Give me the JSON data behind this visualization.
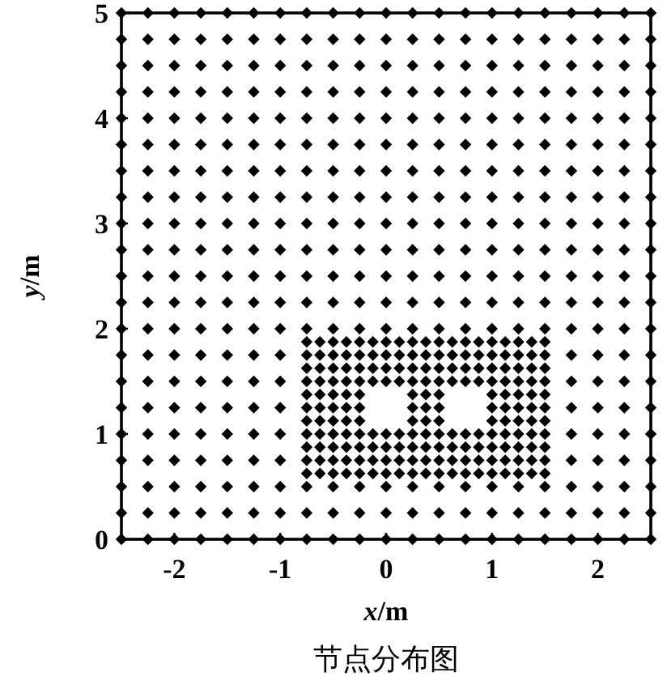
{
  "chart_data": {
    "type": "scatter",
    "title": "节点分布图",
    "xlabel": "*x*/m",
    "ylabel": "*y*/m",
    "xlim": [
      -2.5,
      2.5
    ],
    "ylim": [
      0,
      5
    ],
    "xticks": [
      -2,
      -1,
      0,
      1,
      2
    ],
    "yticks": [
      0,
      1,
      2,
      3,
      4,
      5
    ],
    "grid": false,
    "marker": "diamond",
    "series": [
      {
        "color": "#000000",
        "x": [
          -2.5,
          -2.25,
          -2,
          -1.75,
          -1.5,
          -1.25,
          -1,
          -0.75,
          -0.5,
          -0.25,
          0,
          0.25,
          0.5,
          0.75,
          1,
          1.25,
          1.5,
          1.75,
          2,
          2.25,
          2.5,
          -2.5,
          -2.25,
          -2,
          -1.75,
          -1.5,
          -1.25,
          -1,
          -0.75,
          -0.5,
          -0.25,
          0,
          0.25,
          0.5,
          0.75,
          1,
          1.25,
          1.5,
          1.75,
          2,
          2.25,
          2.5,
          -2.5,
          -2.25,
          -2,
          -1.75,
          -1.5,
          -1.25,
          -1,
          -0.75,
          -0.5,
          -0.25,
          0,
          0.25,
          0.5,
          0.75,
          1,
          1.25,
          1.5,
          1.75,
          2,
          2.25,
          2.5,
          -2.5,
          -2.25,
          -2,
          -1.75,
          -1.5,
          -1.25,
          -1,
          1.75,
          2,
          2.25,
          2.5,
          -2.5,
          -2.25,
          -2,
          -1.75,
          -1.5,
          -1.25,
          -1,
          1.75,
          2,
          2.25,
          2.5,
          -2.5,
          -2.25,
          -2,
          -1.75,
          -1.5,
          -1.25,
          -1,
          1.75,
          2,
          2.25,
          2.5,
          -2.5,
          -2.25,
          -2,
          -1.75,
          -1.5,
          -1.25,
          -1,
          1.75,
          2,
          2.25,
          2.5,
          -2.5,
          -2.25,
          -2,
          -1.75,
          -1.5,
          -1.25,
          -1,
          1.75,
          2,
          2.25,
          2.5,
          -2.5,
          -2.25,
          -2,
          -1.75,
          -1.5,
          -1.25,
          -1,
          -0.75,
          -0.5,
          -0.25,
          0,
          0.25,
          0.5,
          0.75,
          1,
          1.25,
          1.5,
          1.75,
          2,
          2.25,
          2.5,
          -2.5,
          -2.25,
          -2,
          -1.75,
          -1.5,
          -1.25,
          -1,
          -0.75,
          -0.5,
          -0.25,
          0,
          0.25,
          0.5,
          0.75,
          1,
          1.25,
          1.5,
          1.75,
          2,
          2.25,
          2.5,
          -2.5,
          -2.25,
          -2,
          -1.75,
          -1.5,
          -1.25,
          -1,
          -0.75,
          -0.5,
          -0.25,
          0,
          0.25,
          0.5,
          0.75,
          1,
          1.25,
          1.5,
          1.75,
          2,
          2.25,
          2.5,
          -2.5,
          -2.25,
          -2,
          -1.75,
          -1.5,
          -1.25,
          -1,
          -0.75,
          -0.5,
          -0.25,
          0,
          0.25,
          0.5,
          0.75,
          1,
          1.25,
          1.5,
          1.75,
          2,
          2.25,
          2.5,
          -2.5,
          -2.25,
          -2,
          -1.75,
          -1.5,
          -1.25,
          -1,
          -0.75,
          -0.5,
          -0.25,
          0,
          0.25,
          0.5,
          0.75,
          1,
          1.25,
          1.5,
          1.75,
          2,
          2.25,
          2.5,
          -2.5,
          -2.25,
          -2,
          -1.75,
          -1.5,
          -1.25,
          -1,
          -0.75,
          -0.5,
          -0.25,
          0,
          0.25,
          0.5,
          0.75,
          1,
          1.25,
          1.5,
          1.75,
          2,
          2.25,
          2.5,
          -2.5,
          -2.25,
          -2,
          -1.75,
          -1.5,
          -1.25,
          -1,
          -0.75,
          -0.5,
          -0.25,
          0,
          0.25,
          0.5,
          0.75,
          1,
          1.25,
          1.5,
          1.75,
          2,
          2.25,
          2.5,
          -2.5,
          -2.25,
          -2,
          -1.75,
          -1.5,
          -1.25,
          -1,
          -0.75,
          -0.5,
          -0.25,
          0,
          0.25,
          0.5,
          0.75,
          1,
          1.25,
          1.5,
          1.75,
          2,
          2.25,
          2.5,
          -2.5,
          -2.25,
          -2,
          -1.75,
          -1.5,
          -1.25,
          -1,
          -0.75,
          -0.5,
          -0.25,
          0,
          0.25,
          0.5,
          0.75,
          1,
          1.25,
          1.5,
          1.75,
          2,
          2.25,
          2.5,
          -2.5,
          -2.25,
          -2,
          -1.75,
          -1.5,
          -1.25,
          -1,
          -0.75,
          -0.5,
          -0.25,
          0,
          0.25,
          0.5,
          0.75,
          1,
          1.25,
          1.5,
          1.75,
          2,
          2.25,
          2.5,
          -2.5,
          -2.25,
          -2,
          -1.75,
          -1.5,
          -1.25,
          -1,
          -0.75,
          -0.5,
          -0.25,
          0,
          0.25,
          0.5,
          0.75,
          1,
          1.25,
          1.5,
          1.75,
          2,
          2.25,
          2.5,
          -2.5,
          -2.25,
          -2,
          -1.75,
          -1.5,
          -1.25,
          -1,
          -0.75,
          -0.5,
          -0.25,
          0,
          0.25,
          0.5,
          0.75,
          1,
          1.25,
          1.5,
          1.75,
          2,
          2.25,
          2.5,
          -2.5,
          -2.25,
          -2,
          -1.75,
          -1.5,
          -1.25,
          -1,
          -0.75,
          -0.5,
          -0.25,
          0,
          0.25,
          0.5,
          0.75,
          1,
          1.25,
          1.5,
          1.75,
          2,
          2.25,
          2.5
        ],
        "values": [
          0,
          0,
          0,
          0,
          0,
          0,
          0,
          0,
          0,
          0,
          0,
          0,
          0,
          0,
          0,
          0,
          0,
          0,
          0,
          0,
          0,
          0.25,
          0.25,
          0.25,
          0.25,
          0.25,
          0.25,
          0.25,
          0.25,
          0.25,
          0.25,
          0.25,
          0.25,
          0.25,
          0.25,
          0.25,
          0.25,
          0.25,
          0.25,
          0.25,
          0.25,
          0.25,
          0.5,
          0.5,
          0.5,
          0.5,
          0.5,
          0.5,
          0.5,
          0.5,
          0.5,
          0.5,
          0.5,
          0.5,
          0.5,
          0.5,
          0.5,
          0.5,
          0.5,
          0.5,
          0.5,
          0.5,
          0.5,
          0.75,
          0.75,
          0.75,
          0.75,
          0.75,
          0.75,
          0.75,
          0.75,
          0.75,
          0.75,
          0.75,
          1,
          1,
          1,
          1,
          1,
          1,
          1,
          1,
          1,
          1,
          1,
          1.25,
          1.25,
          1.25,
          1.25,
          1.25,
          1.25,
          1.25,
          1.25,
          1.25,
          1.25,
          1.25,
          1.5,
          1.5,
          1.5,
          1.5,
          1.5,
          1.5,
          1.5,
          1.5,
          1.5,
          1.5,
          1.5,
          1.75,
          1.75,
          1.75,
          1.75,
          1.75,
          1.75,
          1.75,
          1.75,
          1.75,
          1.75,
          1.75,
          2,
          2,
          2,
          2,
          2,
          2,
          2,
          2,
          2,
          2,
          2,
          2,
          2,
          2,
          2,
          2,
          2,
          2,
          2,
          2,
          2,
          2.25,
          2.25,
          2.25,
          2.25,
          2.25,
          2.25,
          2.25,
          2.25,
          2.25,
          2.25,
          2.25,
          2.25,
          2.25,
          2.25,
          2.25,
          2.25,
          2.25,
          2.25,
          2.25,
          2.25,
          2.25,
          2.5,
          2.5,
          2.5,
          2.5,
          2.5,
          2.5,
          2.5,
          2.5,
          2.5,
          2.5,
          2.5,
          2.5,
          2.5,
          2.5,
          2.5,
          2.5,
          2.5,
          2.5,
          2.5,
          2.5,
          2.5,
          2.75,
          2.75,
          2.75,
          2.75,
          2.75,
          2.75,
          2.75,
          2.75,
          2.75,
          2.75,
          2.75,
          2.75,
          2.75,
          2.75,
          2.75,
          2.75,
          2.75,
          2.75,
          2.75,
          2.75,
          2.75,
          3,
          3,
          3,
          3,
          3,
          3,
          3,
          3,
          3,
          3,
          3,
          3,
          3,
          3,
          3,
          3,
          3,
          3,
          3,
          3,
          3,
          3.25,
          3.25,
          3.25,
          3.25,
          3.25,
          3.25,
          3.25,
          3.25,
          3.25,
          3.25,
          3.25,
          3.25,
          3.25,
          3.25,
          3.25,
          3.25,
          3.25,
          3.25,
          3.25,
          3.25,
          3.25,
          3.5,
          3.5,
          3.5,
          3.5,
          3.5,
          3.5,
          3.5,
          3.5,
          3.5,
          3.5,
          3.5,
          3.5,
          3.5,
          3.5,
          3.5,
          3.5,
          3.5,
          3.5,
          3.5,
          3.5,
          3.5,
          3.75,
          3.75,
          3.75,
          3.75,
          3.75,
          3.75,
          3.75,
          3.75,
          3.75,
          3.75,
          3.75,
          3.75,
          3.75,
          3.75,
          3.75,
          3.75,
          3.75,
          3.75,
          3.75,
          3.75,
          3.75,
          4,
          4,
          4,
          4,
          4,
          4,
          4,
          4,
          4,
          4,
          4,
          4,
          4,
          4,
          4,
          4,
          4,
          4,
          4,
          4,
          4,
          4.25,
          4.25,
          4.25,
          4.25,
          4.25,
          4.25,
          4.25,
          4.25,
          4.25,
          4.25,
          4.25,
          4.25,
          4.25,
          4.25,
          4.25,
          4.25,
          4.25,
          4.25,
          4.25,
          4.25,
          4.25,
          4.5,
          4.5,
          4.5,
          4.5,
          4.5,
          4.5,
          4.5,
          4.5,
          4.5,
          4.5,
          4.5,
          4.5,
          4.5,
          4.5,
          4.5,
          4.5,
          4.5,
          4.5,
          4.5,
          4.5,
          4.5,
          4.75,
          4.75,
          4.75,
          4.75,
          4.75,
          4.75,
          4.75,
          4.75,
          4.75,
          4.75,
          4.75,
          4.75,
          4.75,
          4.75,
          4.75,
          4.75,
          4.75,
          4.75,
          4.75,
          4.75,
          4.75,
          5,
          5,
          5,
          5,
          5,
          5,
          5,
          5,
          5,
          5,
          5,
          5,
          5,
          5,
          5,
          5,
          5,
          5,
          5,
          5,
          5
        ]
      },
      {
        "color": "#000000",
        "x": [
          -0.75,
          -0.625,
          -0.5,
          -0.375,
          -0.25,
          -0.125,
          0,
          0.125,
          0.25,
          0.375,
          0.5,
          0.625,
          0.75,
          0.875,
          1,
          1.125,
          1.25,
          1.375,
          1.5,
          -0.75,
          -0.625,
          -0.5,
          -0.375,
          -0.25,
          -0.125,
          0,
          0.125,
          0.25,
          0.375,
          0.5,
          0.625,
          0.75,
          0.875,
          1,
          1.125,
          1.25,
          1.375,
          1.5,
          -0.75,
          -0.625,
          -0.5,
          -0.375,
          -0.25,
          -0.125,
          0,
          0.125,
          0.25,
          0.375,
          0.5,
          0.625,
          0.75,
          0.875,
          1,
          1.125,
          1.25,
          1.375,
          1.5,
          -0.75,
          -0.625,
          -0.5,
          -0.375,
          -0.25,
          -0.125,
          0,
          0.125,
          0.25,
          0.375,
          0.5,
          0.625,
          0.75,
          0.875,
          1,
          1.125,
          1.25,
          1.375,
          1.5,
          -0.75,
          -0.625,
          -0.5,
          -0.375,
          -0.25,
          0.25,
          0.375,
          0.5,
          1,
          1.125,
          1.25,
          1.375,
          1.5,
          -0.75,
          -0.625,
          -0.5,
          -0.375,
          -0.25,
          0.25,
          0.375,
          0.5,
          1,
          1.125,
          1.25,
          1.375,
          1.5,
          -0.75,
          -0.625,
          -0.5,
          -0.375,
          -0.25,
          0.25,
          0.375,
          0.5,
          1,
          1.125,
          1.25,
          1.375,
          1.5,
          -0.75,
          -0.625,
          -0.5,
          -0.375,
          -0.25,
          -0.125,
          0,
          0.125,
          0.25,
          0.375,
          0.5,
          0.625,
          0.75,
          0.875,
          1,
          1.125,
          1.25,
          1.375,
          1.5,
          -0.75,
          -0.625,
          -0.5,
          -0.375,
          -0.25,
          -0.125,
          0,
          0.125,
          0.25,
          0.375,
          0.5,
          0.625,
          0.75,
          0.875,
          1,
          1.125,
          1.25,
          1.375,
          1.5,
          -0.75,
          -0.625,
          -0.5,
          -0.375,
          -0.25,
          -0.125,
          0,
          0.125,
          0.25,
          0.375,
          0.5,
          0.625,
          0.75,
          0.875,
          1,
          1.125,
          1.25,
          1.375,
          1.5,
          -0.75,
          -0.625,
          -0.5,
          -0.375,
          -0.25,
          -0.125,
          0,
          0.125,
          0.25,
          0.375,
          0.5,
          0.625,
          0.75,
          0.875,
          1,
          1.125,
          1.25,
          1.375,
          1.5
        ],
        "values": [
          0.625,
          0.625,
          0.625,
          0.625,
          0.625,
          0.625,
          0.625,
          0.625,
          0.625,
          0.625,
          0.625,
          0.625,
          0.625,
          0.625,
          0.625,
          0.625,
          0.625,
          0.625,
          0.625,
          0.75,
          0.75,
          0.75,
          0.75,
          0.75,
          0.75,
          0.75,
          0.75,
          0.75,
          0.75,
          0.75,
          0.75,
          0.75,
          0.75,
          0.75,
          0.75,
          0.75,
          0.75,
          0.75,
          0.875,
          0.875,
          0.875,
          0.875,
          0.875,
          0.875,
          0.875,
          0.875,
          0.875,
          0.875,
          0.875,
          0.875,
          0.875,
          0.875,
          0.875,
          0.875,
          0.875,
          0.875,
          0.875,
          1,
          1,
          1,
          1,
          1,
          1,
          1,
          1,
          1,
          1,
          1,
          1,
          1,
          1,
          1,
          1,
          1,
          1,
          1,
          1.125,
          1.125,
          1.125,
          1.125,
          1.125,
          1.125,
          1.125,
          1.125,
          1.125,
          1.125,
          1.125,
          1.125,
          1.125,
          1.25,
          1.25,
          1.25,
          1.25,
          1.25,
          1.25,
          1.25,
          1.25,
          1.25,
          1.25,
          1.25,
          1.25,
          1.25,
          1.375,
          1.375,
          1.375,
          1.375,
          1.375,
          1.375,
          1.375,
          1.375,
          1.375,
          1.375,
          1.375,
          1.375,
          1.375,
          1.5,
          1.5,
          1.5,
          1.5,
          1.5,
          1.5,
          1.5,
          1.5,
          1.5,
          1.5,
          1.5,
          1.5,
          1.5,
          1.5,
          1.5,
          1.5,
          1.5,
          1.5,
          1.5,
          1.625,
          1.625,
          1.625,
          1.625,
          1.625,
          1.625,
          1.625,
          1.625,
          1.625,
          1.625,
          1.625,
          1.625,
          1.625,
          1.625,
          1.625,
          1.625,
          1.625,
          1.625,
          1.625,
          1.75,
          1.75,
          1.75,
          1.75,
          1.75,
          1.75,
          1.75,
          1.75,
          1.75,
          1.75,
          1.75,
          1.75,
          1.75,
          1.75,
          1.75,
          1.75,
          1.75,
          1.75,
          1.75,
          1.875,
          1.875,
          1.875,
          1.875,
          1.875,
          1.875,
          1.875,
          1.875,
          1.875,
          1.875,
          1.875,
          1.875,
          1.875,
          1.875,
          1.875,
          1.875,
          1.875,
          1.875,
          1.875
        ]
      }
    ]
  }
}
